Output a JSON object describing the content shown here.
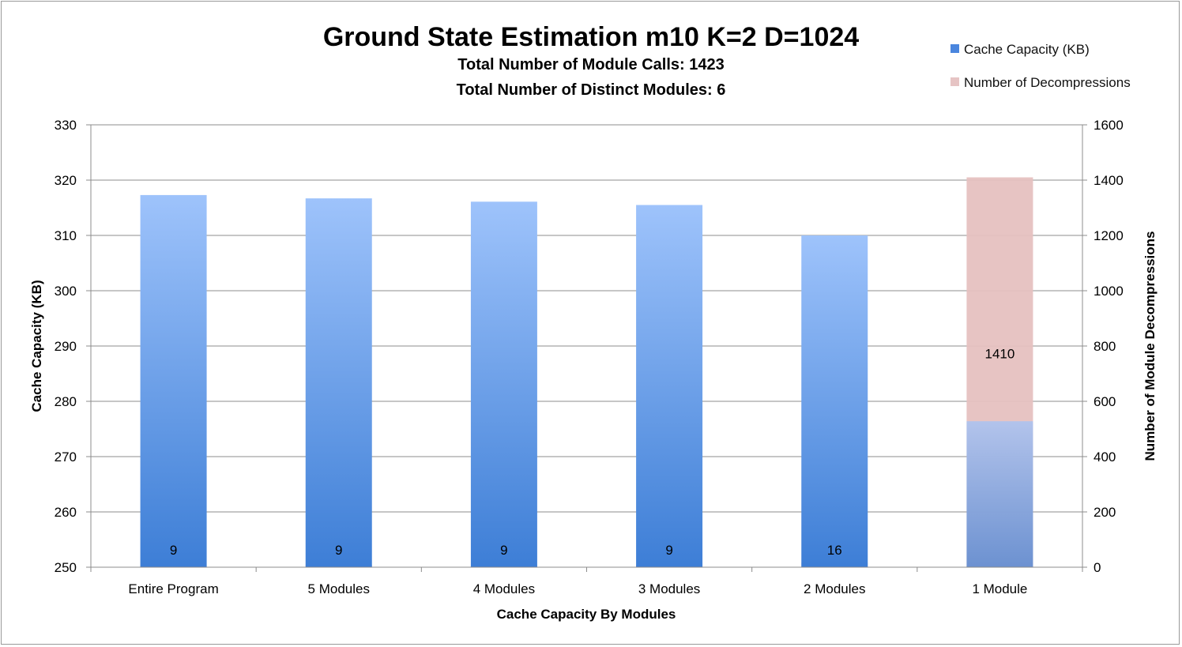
{
  "chart_data": {
    "type": "bar",
    "title": "Ground State Estimation m10 K=2 D=1024",
    "subtitles": [
      "Total Number of Module Calls: 1423",
      "Total Number of Distinct Modules: 6"
    ],
    "xlabel": "Cache Capacity By Modules",
    "ylabel": "Cache Capacity (KB)",
    "y2label": "Number of Module Decompressions",
    "categories": [
      "Entire Program",
      "5 Modules",
      "4 Modules",
      "3 Modules",
      "2 Modules",
      "1 Module"
    ],
    "ylim": [
      250,
      330
    ],
    "yticks": [
      250,
      260,
      270,
      280,
      290,
      300,
      310,
      320,
      330
    ],
    "y2lim": [
      0,
      1600
    ],
    "y2ticks": [
      0,
      200,
      400,
      600,
      800,
      1000,
      1200,
      1400,
      1600
    ],
    "grid": true,
    "legend_position": "top-right",
    "series": [
      {
        "name": "Cache Capacity (KB)",
        "axis": "left",
        "values": [
          317.3,
          316.7,
          316.1,
          315.5,
          310.0,
          276.4
        ],
        "color": "#5b92e5"
      },
      {
        "name": "Number of Decompressions",
        "axis": "right",
        "values": [
          9,
          9,
          9,
          9,
          16,
          1410
        ],
        "color": "#e6b9b8",
        "data_labels": [
          "9",
          "9",
          "9",
          "9",
          "16",
          "1410"
        ]
      }
    ]
  }
}
